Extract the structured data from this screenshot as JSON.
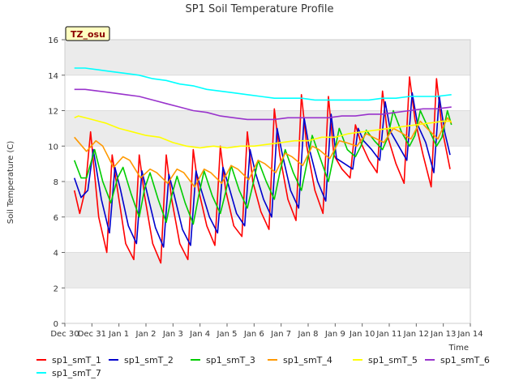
{
  "chart_data": {
    "type": "line",
    "title": "SP1 Soil Temperature Profile",
    "xlabel": "Time",
    "ylabel": "Soil Temperature (C)",
    "ylim": [
      0,
      16
    ],
    "yticks": [
      0,
      2,
      4,
      6,
      8,
      10,
      12,
      14,
      16
    ],
    "xlim": [
      0,
      15
    ],
    "xticks": [
      {
        "x": 0,
        "label": "Dec 30"
      },
      {
        "x": 1,
        "label": "Dec 31"
      },
      {
        "x": 2,
        "label": "Jan 1"
      },
      {
        "x": 3,
        "label": "Jan 2"
      },
      {
        "x": 4,
        "label": "Jan 3"
      },
      {
        "x": 5,
        "label": "Jan 4"
      },
      {
        "x": 6,
        "label": "Jan 5"
      },
      {
        "x": 7,
        "label": "Jan 6"
      },
      {
        "x": 8,
        "label": "Jan 7"
      },
      {
        "x": 9,
        "label": "Jan 8"
      },
      {
        "x": 10,
        "label": "Jan 9"
      },
      {
        "x": 11,
        "label": "Jan 10"
      },
      {
        "x": 12,
        "label": "Jan 11"
      },
      {
        "x": 13,
        "label": "Jan 12"
      },
      {
        "x": 14,
        "label": "Jan 13"
      },
      {
        "x": 15,
        "label": "Jan 14"
      }
    ],
    "grid": "horizontal bands",
    "legend_position": "bottom",
    "annotation": "TZ_osu",
    "series": [
      {
        "name": "sp1_smT_1",
        "color": "#ff0000",
        "x": [
          0.35,
          0.55,
          0.75,
          0.95,
          1.25,
          1.55,
          1.75,
          1.95,
          2.25,
          2.55,
          2.75,
          2.95,
          3.25,
          3.55,
          3.75,
          3.95,
          4.25,
          4.55,
          4.75,
          4.95,
          5.25,
          5.55,
          5.75,
          5.95,
          6.25,
          6.55,
          6.75,
          6.95,
          7.25,
          7.55,
          7.75,
          7.95,
          8.25,
          8.55,
          8.75,
          8.95,
          9.25,
          9.55,
          9.75,
          9.95,
          10.25,
          10.55,
          10.75,
          10.95,
          11.25,
          11.55,
          11.75,
          11.95,
          12.25,
          12.55,
          12.75,
          12.95,
          13.25,
          13.55,
          13.75,
          13.95,
          14.25
        ],
        "y": [
          7.5,
          6.2,
          7.5,
          10.8,
          6.0,
          4.0,
          9.5,
          7.5,
          4.5,
          3.6,
          9.5,
          7.2,
          4.5,
          3.4,
          9.5,
          7.0,
          4.5,
          3.6,
          9.8,
          7.5,
          5.5,
          4.4,
          10.0,
          7.5,
          5.5,
          4.9,
          10.8,
          8.0,
          6.3,
          5.3,
          12.1,
          9.5,
          7.0,
          5.8,
          12.9,
          10.0,
          7.5,
          6.2,
          12.8,
          9.5,
          8.7,
          8.2,
          11.2,
          10.2,
          9.2,
          8.5,
          13.1,
          10.5,
          9.0,
          7.9,
          13.9,
          11.5,
          9.5,
          7.7,
          13.8,
          11.0,
          8.7
        ]
      },
      {
        "name": "sp1_smT_2",
        "color": "#0000cc",
        "x": [
          0.35,
          0.6,
          0.85,
          1.05,
          1.35,
          1.65,
          1.85,
          2.05,
          2.35,
          2.65,
          2.85,
          3.05,
          3.35,
          3.65,
          3.85,
          4.05,
          4.35,
          4.65,
          4.85,
          5.05,
          5.35,
          5.65,
          5.85,
          6.05,
          6.35,
          6.65,
          6.85,
          7.05,
          7.35,
          7.65,
          7.85,
          8.05,
          8.35,
          8.65,
          8.85,
          9.05,
          9.35,
          9.65,
          9.85,
          10.05,
          10.35,
          10.65,
          10.85,
          11.05,
          11.35,
          11.65,
          11.85,
          12.05,
          12.35,
          12.65,
          12.85,
          13.05,
          13.35,
          13.65,
          13.85,
          14.05,
          14.25
        ],
        "y": [
          8.2,
          7.1,
          7.5,
          9.8,
          7.0,
          5.1,
          8.8,
          7.6,
          5.5,
          4.5,
          8.6,
          7.3,
          5.4,
          4.3,
          8.4,
          7.2,
          5.3,
          4.4,
          8.6,
          7.5,
          6.0,
          5.1,
          8.8,
          7.8,
          6.2,
          5.5,
          9.8,
          8.5,
          7.0,
          6.0,
          11.0,
          9.5,
          7.5,
          6.5,
          11.6,
          9.8,
          8.0,
          6.9,
          11.8,
          9.3,
          9.0,
          8.7,
          11.0,
          10.3,
          9.8,
          9.2,
          12.5,
          10.8,
          10.0,
          9.2,
          13.0,
          11.2,
          10.2,
          8.5,
          12.8,
          10.8,
          9.5
        ]
      },
      {
        "name": "sp1_smT_3",
        "color": "#00cc00",
        "x": [
          0.35,
          0.6,
          0.8,
          1.1,
          1.4,
          1.7,
          1.95,
          2.15,
          2.45,
          2.75,
          2.95,
          3.15,
          3.45,
          3.75,
          3.95,
          4.15,
          4.45,
          4.75,
          4.95,
          5.15,
          5.45,
          5.75,
          5.95,
          6.15,
          6.45,
          6.75,
          6.95,
          7.15,
          7.45,
          7.75,
          7.95,
          8.15,
          8.45,
          8.75,
          8.95,
          9.15,
          9.45,
          9.75,
          9.95,
          10.15,
          10.45,
          10.75,
          10.95,
          11.15,
          11.45,
          11.75,
          11.95,
          12.15,
          12.45,
          12.75,
          12.95,
          13.15,
          13.45,
          13.75,
          13.95,
          14.15,
          14.3
        ],
        "y": [
          9.2,
          8.2,
          8.2,
          9.8,
          8.0,
          6.8,
          8.2,
          8.8,
          7.3,
          6.0,
          7.6,
          8.5,
          7.0,
          5.7,
          7.2,
          8.3,
          6.8,
          5.6,
          7.2,
          8.6,
          7.2,
          6.2,
          7.4,
          8.9,
          7.5,
          6.5,
          7.8,
          9.2,
          8.0,
          7.0,
          8.5,
          9.8,
          8.5,
          7.5,
          9.0,
          10.6,
          9.3,
          8.0,
          9.5,
          11.0,
          9.8,
          9.4,
          10.0,
          10.9,
          10.3,
          9.8,
          10.5,
          12.0,
          10.8,
          10.0,
          10.6,
          12.0,
          11.0,
          10.0,
          10.5,
          12.0,
          11.2
        ]
      },
      {
        "name": "sp1_smT_4",
        "color": "#ff9900",
        "x": [
          0.35,
          0.8,
          1.15,
          1.4,
          1.8,
          2.15,
          2.4,
          2.8,
          3.15,
          3.4,
          3.8,
          4.15,
          4.4,
          4.8,
          5.15,
          5.4,
          5.8,
          6.15,
          6.4,
          6.8,
          7.15,
          7.4,
          7.8,
          8.15,
          8.4,
          8.8,
          9.15,
          9.4,
          9.8,
          10.15,
          10.4,
          10.8,
          11.15,
          11.4,
          11.8,
          12.15,
          12.4,
          12.8,
          13.15,
          13.4,
          13.8,
          14.15,
          14.3
        ],
        "y": [
          10.5,
          9.7,
          10.3,
          10.0,
          8.8,
          9.4,
          9.2,
          8.2,
          8.7,
          8.5,
          7.9,
          8.7,
          8.5,
          7.7,
          8.7,
          8.5,
          7.9,
          8.9,
          8.7,
          8.1,
          9.2,
          9.0,
          8.5,
          9.6,
          9.4,
          8.9,
          10.0,
          9.8,
          9.3,
          10.3,
          10.2,
          10.0,
          10.7,
          10.5,
          10.2,
          11.0,
          10.8,
          10.4,
          11.4,
          11.0,
          10.4,
          11.6,
          11.3
        ]
      },
      {
        "name": "sp1_smT_5",
        "color": "#ffff00",
        "x": [
          0.35,
          0.5,
          1.0,
          1.5,
          2.0,
          2.5,
          3.0,
          3.5,
          4.0,
          4.5,
          5.0,
          5.5,
          6.0,
          6.5,
          7.0,
          7.5,
          8.0,
          8.5,
          9.0,
          9.5,
          10.0,
          10.5,
          11.0,
          11.5,
          12.0,
          12.5,
          13.0,
          13.5,
          14.0,
          14.3
        ],
        "y": [
          11.6,
          11.7,
          11.5,
          11.3,
          11.0,
          10.8,
          10.6,
          10.5,
          10.2,
          10.0,
          9.9,
          10.0,
          9.9,
          10.0,
          10.0,
          10.1,
          10.2,
          10.3,
          10.3,
          10.5,
          10.5,
          10.7,
          10.8,
          10.9,
          11.0,
          11.1,
          11.2,
          11.3,
          11.4,
          11.4
        ]
      },
      {
        "name": "sp1_smT_6",
        "color": "#9933cc",
        "x": [
          0.35,
          0.75,
          1.25,
          1.75,
          2.25,
          2.75,
          3.25,
          3.75,
          4.25,
          4.75,
          5.25,
          5.75,
          6.25,
          6.75,
          7.25,
          7.75,
          8.25,
          8.75,
          9.25,
          9.75,
          10.25,
          10.75,
          11.25,
          11.75,
          12.25,
          12.75,
          13.25,
          13.75,
          14.3
        ],
        "y": [
          13.2,
          13.2,
          13.1,
          13.0,
          12.9,
          12.8,
          12.6,
          12.4,
          12.2,
          12.0,
          11.9,
          11.7,
          11.6,
          11.5,
          11.5,
          11.5,
          11.6,
          11.6,
          11.6,
          11.6,
          11.7,
          11.7,
          11.8,
          11.8,
          11.9,
          12.0,
          12.1,
          12.1,
          12.2
        ]
      },
      {
        "name": "sp1_smT_7",
        "color": "#00ffff",
        "x": [
          0.35,
          0.75,
          1.25,
          1.75,
          2.25,
          2.75,
          3.25,
          3.75,
          4.25,
          4.75,
          5.25,
          5.75,
          6.25,
          6.75,
          7.25,
          7.75,
          8.25,
          8.75,
          9.25,
          9.75,
          10.25,
          10.75,
          11.25,
          11.75,
          12.25,
          12.75,
          13.25,
          13.75,
          14.3
        ],
        "y": [
          14.4,
          14.4,
          14.3,
          14.2,
          14.1,
          14.0,
          13.8,
          13.7,
          13.5,
          13.4,
          13.2,
          13.1,
          13.0,
          12.9,
          12.8,
          12.7,
          12.7,
          12.7,
          12.6,
          12.6,
          12.6,
          12.6,
          12.6,
          12.7,
          12.7,
          12.8,
          12.8,
          12.8,
          12.9
        ]
      }
    ]
  }
}
